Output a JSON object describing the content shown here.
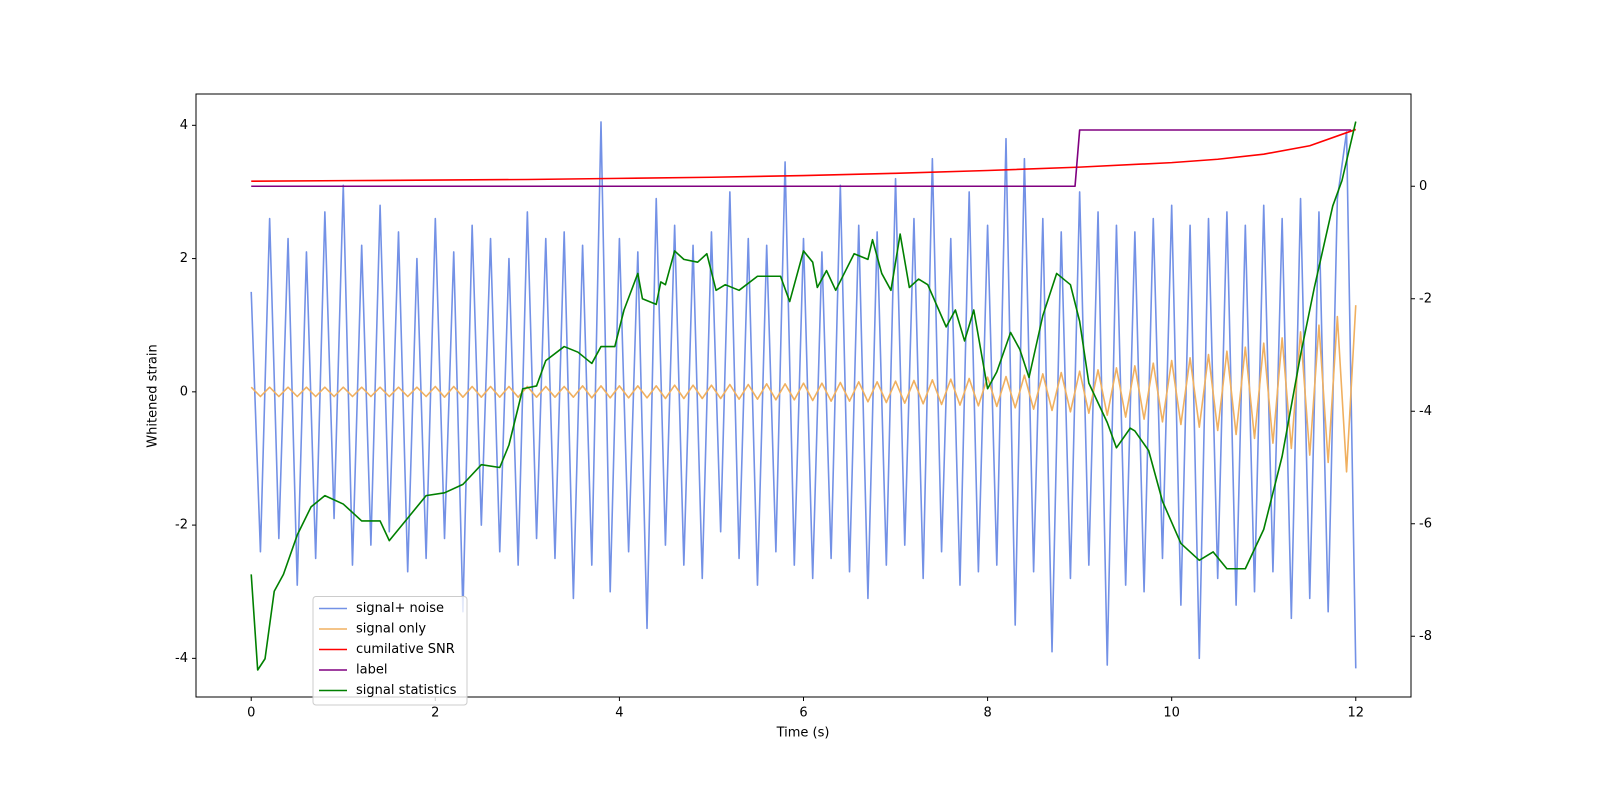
{
  "chart_data": {
    "type": "line",
    "x_label": "Time (s)",
    "y_label": "Whitened strain",
    "xlim": [
      -0.6,
      12.6
    ],
    "ylim": [
      -4.58,
      4.47
    ],
    "y2lim": [
      -9.08,
      1.64
    ],
    "xticks": [
      0,
      2,
      4,
      6,
      8,
      10,
      12
    ],
    "yticks": [
      -4,
      -2,
      0,
      2,
      4
    ],
    "y2ticks": [
      -8,
      -6,
      -4,
      -2,
      0
    ],
    "legend": "lower left",
    "x": [
      0,
      0.1,
      0.2,
      0.3,
      0.4,
      0.5,
      0.6,
      0.7,
      0.8,
      0.9,
      1.0,
      1.1,
      1.2,
      1.3,
      1.4,
      1.5,
      1.6,
      1.7,
      1.8,
      1.9,
      2.0,
      2.1,
      2.2,
      2.3,
      2.4,
      2.5,
      2.6,
      2.7,
      2.8,
      2.9,
      3.0,
      3.1,
      3.2,
      3.3,
      3.4,
      3.5,
      3.6,
      3.7,
      3.8,
      3.9,
      4.0,
      4.1,
      4.2,
      4.3,
      4.4,
      4.5,
      4.6,
      4.7,
      4.8,
      4.9,
      5.0,
      5.1,
      5.2,
      5.3,
      5.4,
      5.5,
      5.6,
      5.7,
      5.8,
      5.9,
      6.0,
      6.1,
      6.2,
      6.3,
      6.4,
      6.5,
      6.6,
      6.7,
      6.8,
      6.9,
      7.0,
      7.1,
      7.2,
      7.3,
      7.4,
      7.5,
      7.6,
      7.7,
      7.8,
      7.9,
      8.0,
      8.1,
      8.2,
      8.3,
      8.4,
      8.5,
      8.6,
      8.7,
      8.8,
      8.9,
      9.0,
      9.1,
      9.2,
      9.3,
      9.4,
      9.5,
      9.6,
      9.7,
      9.8,
      9.9,
      10.0,
      10.1,
      10.2,
      10.3,
      10.4,
      10.5,
      10.6,
      10.7,
      10.8,
      10.9,
      11.0,
      11.1,
      11.2,
      11.3,
      11.4,
      11.5,
      11.6,
      11.7,
      11.8,
      11.9,
      12.0
    ],
    "series": [
      {
        "name": "signal+ noise",
        "color": "#7391e6",
        "values": [
          1.5,
          -2.4,
          2.6,
          -2.2,
          2.3,
          -2.9,
          2.1,
          -2.5,
          2.7,
          -1.9,
          3.1,
          -2.6,
          2.2,
          -2.3,
          2.8,
          -2.1,
          2.4,
          -2.7,
          2.0,
          -2.5,
          2.6,
          -2.2,
          2.1,
          -3.3,
          2.5,
          -2.0,
          2.3,
          -2.4,
          2.0,
          -2.6,
          2.7,
          -2.2,
          2.3,
          -2.5,
          2.4,
          -3.1,
          2.2,
          -2.6,
          4.05,
          -3.0,
          2.3,
          -2.4,
          2.1,
          -3.55,
          2.9,
          -2.3,
          2.5,
          -2.6,
          2.2,
          -2.8,
          2.4,
          -2.1,
          3.0,
          -2.5,
          2.3,
          -2.9,
          2.2,
          -2.4,
          3.45,
          -2.6,
          2.3,
          -2.8,
          2.1,
          -2.5,
          3.1,
          -2.7,
          2.5,
          -3.1,
          2.4,
          -2.6,
          3.2,
          -2.3,
          2.6,
          -2.8,
          3.5,
          -2.4,
          2.3,
          -2.9,
          3.0,
          -2.7,
          2.5,
          -2.6,
          3.8,
          -3.5,
          3.5,
          -2.7,
          2.6,
          -3.9,
          2.4,
          -2.8,
          3.0,
          -2.6,
          2.7,
          -4.1,
          2.5,
          -2.9,
          2.4,
          -3.0,
          2.6,
          -2.5,
          2.8,
          -3.2,
          2.5,
          -4.0,
          2.6,
          -2.8,
          2.7,
          -3.2,
          2.5,
          -3.0,
          2.8,
          -2.7,
          2.6,
          -3.4,
          2.9,
          -3.1,
          2.7,
          -3.3,
          2.9,
          3.9,
          -4.15
        ]
      },
      {
        "name": "signal only",
        "color": "#f0b060",
        "values": [
          0.07,
          -0.07,
          0.07,
          -0.07,
          0.07,
          -0.07,
          0.07,
          -0.07,
          0.07,
          -0.07,
          0.07,
          -0.07,
          0.07,
          -0.07,
          0.07,
          -0.07,
          0.07,
          -0.07,
          0.07,
          -0.07,
          0.08,
          -0.08,
          0.08,
          -0.08,
          0.08,
          -0.08,
          0.08,
          -0.08,
          0.08,
          -0.08,
          0.08,
          -0.08,
          0.08,
          -0.08,
          0.08,
          -0.08,
          0.09,
          -0.09,
          0.09,
          -0.09,
          0.09,
          -0.09,
          0.09,
          -0.09,
          0.09,
          -0.1,
          0.1,
          -0.1,
          0.1,
          -0.1,
          0.1,
          -0.1,
          0.11,
          -0.11,
          0.11,
          -0.11,
          0.12,
          -0.12,
          0.12,
          -0.12,
          0.13,
          -0.13,
          0.13,
          -0.14,
          0.14,
          -0.14,
          0.15,
          -0.15,
          0.15,
          -0.16,
          0.16,
          -0.17,
          0.17,
          -0.18,
          0.18,
          -0.19,
          0.19,
          -0.2,
          0.2,
          -0.21,
          0.22,
          -0.22,
          0.23,
          -0.24,
          0.25,
          -0.26,
          0.27,
          -0.28,
          0.29,
          -0.3,
          0.31,
          -0.32,
          0.33,
          -0.35,
          0.36,
          -0.38,
          0.39,
          -0.41,
          0.43,
          -0.45,
          0.47,
          -0.49,
          0.51,
          -0.53,
          0.56,
          -0.58,
          0.61,
          -0.64,
          0.67,
          -0.7,
          0.73,
          -0.77,
          0.81,
          -0.85,
          0.9,
          -0.95,
          1.0,
          -1.06,
          1.13,
          -1.2,
          1.3
        ]
      },
      {
        "name": "cumilative SNR",
        "color": "#ff0000",
        "axis": "y2",
        "x": [
          0,
          1,
          2,
          3,
          4,
          5,
          6,
          7,
          8,
          9,
          10,
          10.5,
          11,
          11.5,
          12
        ],
        "values": [
          0.09,
          0.1,
          0.11,
          0.12,
          0.14,
          0.16,
          0.19,
          0.23,
          0.28,
          0.34,
          0.42,
          0.48,
          0.57,
          0.72,
          1.01
        ]
      },
      {
        "name": "label",
        "color": "#800080",
        "axis": "y2",
        "x": [
          0,
          8.95,
          9.0,
          11.95
        ],
        "values": [
          0,
          0,
          1,
          1
        ]
      },
      {
        "name": "signal statistics",
        "color": "#008000",
        "axis": "y2",
        "x": [
          0,
          0.07,
          0.15,
          0.25,
          0.35,
          0.5,
          0.65,
          0.8,
          1.0,
          1.2,
          1.4,
          1.5,
          1.7,
          1.9,
          2.1,
          2.3,
          2.5,
          2.7,
          2.8,
          2.95,
          3.1,
          3.2,
          3.4,
          3.55,
          3.7,
          3.8,
          3.95,
          4.05,
          4.2,
          4.25,
          4.4,
          4.45,
          4.5,
          4.6,
          4.7,
          4.85,
          4.95,
          5.05,
          5.15,
          5.3,
          5.5,
          5.65,
          5.75,
          5.85,
          6.0,
          6.1,
          6.15,
          6.25,
          6.35,
          6.55,
          6.7,
          6.75,
          6.85,
          6.95,
          7.05,
          7.15,
          7.25,
          7.35,
          7.55,
          7.65,
          7.75,
          7.85,
          8.0,
          8.1,
          8.25,
          8.35,
          8.45,
          8.6,
          8.75,
          8.9,
          9.0,
          9.1,
          9.3,
          9.4,
          9.55,
          9.6,
          9.75,
          9.9,
          10.1,
          10.3,
          10.45,
          10.6,
          10.8,
          11.0,
          11.2,
          11.4,
          11.55,
          11.75,
          11.85,
          12.0
        ],
        "values": [
          -6.9,
          -8.6,
          -8.4,
          -7.2,
          -6.9,
          -6.2,
          -5.7,
          -5.5,
          -5.65,
          -5.95,
          -5.95,
          -6.3,
          -5.9,
          -5.5,
          -5.45,
          -5.3,
          -4.95,
          -5.0,
          -4.6,
          -3.6,
          -3.55,
          -3.1,
          -2.85,
          -2.95,
          -3.15,
          -2.85,
          -2.85,
          -2.2,
          -1.55,
          -2.0,
          -2.1,
          -1.7,
          -1.75,
          -1.15,
          -1.3,
          -1.35,
          -1.2,
          -1.85,
          -1.75,
          -1.85,
          -1.6,
          -1.6,
          -1.6,
          -2.05,
          -1.15,
          -1.35,
          -1.8,
          -1.5,
          -1.85,
          -1.2,
          -1.3,
          -0.95,
          -1.55,
          -1.85,
          -0.85,
          -1.8,
          -1.65,
          -1.75,
          -2.5,
          -2.2,
          -2.75,
          -2.2,
          -3.6,
          -3.3,
          -2.6,
          -2.9,
          -3.4,
          -2.3,
          -1.55,
          -1.75,
          -2.4,
          -3.5,
          -4.2,
          -4.65,
          -4.3,
          -4.35,
          -4.7,
          -5.6,
          -6.35,
          -6.65,
          -6.5,
          -6.8,
          -6.8,
          -6.1,
          -4.8,
          -3.0,
          -1.8,
          -0.35,
          0.1,
          1.15
        ]
      }
    ]
  }
}
